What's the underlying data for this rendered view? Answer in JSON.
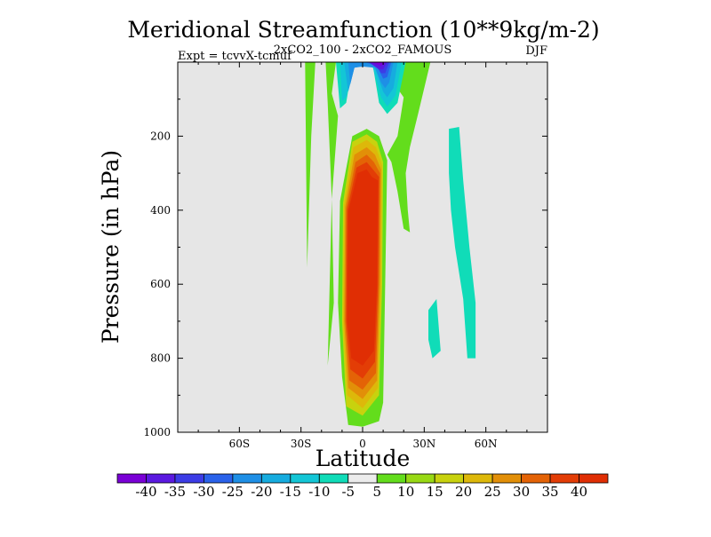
{
  "chart_data": {
    "type": "heatmap",
    "title": "Meridional Streamfunction (10**9kg/m-2)",
    "subtitle_center": "2xCO2_100 - 2xCO2_FAMOUS",
    "subtitle_left": "Expt = tcvvX-tcmuf",
    "subtitle_right": "DJF",
    "xlabel": "Latitude",
    "ylabel": "Pressure (in hPa)",
    "xlim": [
      -90,
      90
    ],
    "ylim": [
      1000,
      0
    ],
    "x_ticks": [
      {
        "value": -60,
        "label": "60S"
      },
      {
        "value": -30,
        "label": "30S"
      },
      {
        "value": 0,
        "label": "0"
      },
      {
        "value": 30,
        "label": "30N"
      },
      {
        "value": 60,
        "label": "60N"
      }
    ],
    "y_ticks": [
      {
        "value": 200,
        "label": "200"
      },
      {
        "value": 400,
        "label": "400"
      },
      {
        "value": 600,
        "label": "600"
      },
      {
        "value": 800,
        "label": "800"
      },
      {
        "value": 1000,
        "label": "1000"
      }
    ],
    "background_color": "#e6e6e6",
    "colorbar": {
      "labels": [
        "-40",
        "-35",
        "-30",
        "-25",
        "-20",
        "-15",
        "-10",
        "-5",
        "5",
        "10",
        "15",
        "20",
        "25",
        "30",
        "35",
        "40"
      ],
      "colors": [
        "#7a00d6",
        "#5b19e0",
        "#3c3ce6",
        "#2a62ea",
        "#1e8fe6",
        "#16acdf",
        "#13c6d6",
        "#10dcb8",
        "#ececec",
        "#63dd1c",
        "#98d914",
        "#c8d20e",
        "#ddb80a",
        "#e28f08",
        "#e46306",
        "#e33d06",
        "#e02e04"
      ]
    },
    "regions": [
      {
        "level": 5,
        "points": [
          [
            -18,
            0
          ],
          [
            -13,
            0
          ],
          [
            -15,
            85
          ],
          [
            -12,
            145
          ],
          [
            -15,
            370
          ],
          [
            -14,
            650
          ],
          [
            -17,
            820
          ],
          [
            -15,
            370
          ],
          [
            -17,
            110
          ]
        ]
      },
      {
        "level": 5,
        "points": [
          [
            -28,
            0
          ],
          [
            -23,
            0
          ],
          [
            -25,
            200
          ],
          [
            -27,
            555
          ]
        ]
      },
      {
        "level": 5,
        "points": [
          [
            8,
            0
          ],
          [
            33,
            0
          ],
          [
            27,
            140
          ],
          [
            23,
            230
          ],
          [
            21,
            300
          ],
          [
            22,
            400
          ],
          [
            23,
            460
          ],
          [
            20,
            450
          ],
          [
            17,
            350
          ],
          [
            14,
            270
          ],
          [
            12,
            250
          ],
          [
            17,
            200
          ],
          [
            20,
            95
          ]
        ]
      },
      {
        "level": 5,
        "points": [
          [
            -11,
            375
          ],
          [
            -5,
            200
          ],
          [
            2,
            180
          ],
          [
            8,
            200
          ],
          [
            12,
            265
          ],
          [
            11,
            600
          ],
          [
            10,
            920
          ],
          [
            8,
            970
          ],
          [
            0,
            985
          ],
          [
            -7,
            980
          ],
          [
            -10,
            850
          ],
          [
            -12,
            650
          ]
        ]
      },
      {
        "level": 15,
        "points": [
          [
            -9.5,
            380
          ],
          [
            -5,
            215
          ],
          [
            2,
            195
          ],
          [
            7,
            215
          ],
          [
            10,
            270
          ],
          [
            9.5,
            600
          ],
          [
            8,
            900
          ],
          [
            0,
            955
          ],
          [
            -8,
            930
          ],
          [
            -10,
            700
          ]
        ]
      },
      {
        "level": 20,
        "points": [
          [
            -9,
            385
          ],
          [
            -4.5,
            230
          ],
          [
            2,
            210
          ],
          [
            6.5,
            230
          ],
          [
            9.5,
            280
          ],
          [
            9,
            600
          ],
          [
            7.5,
            880
          ],
          [
            0,
            935
          ],
          [
            -7.5,
            900
          ],
          [
            -9.5,
            700
          ]
        ]
      },
      {
        "level": 25,
        "points": [
          [
            -8.5,
            390
          ],
          [
            -4,
            250
          ],
          [
            2,
            230
          ],
          [
            6,
            250
          ],
          [
            9,
            290
          ],
          [
            8.5,
            600
          ],
          [
            7,
            860
          ],
          [
            0,
            910
          ],
          [
            -7,
            880
          ],
          [
            -9,
            700
          ]
        ]
      },
      {
        "level": 30,
        "points": [
          [
            -8,
            395
          ],
          [
            -3.5,
            270
          ],
          [
            2,
            250
          ],
          [
            5.5,
            270
          ],
          [
            8.5,
            300
          ],
          [
            8,
            600
          ],
          [
            6.5,
            840
          ],
          [
            0,
            885
          ],
          [
            -6.5,
            860
          ],
          [
            -8.5,
            700
          ]
        ]
      },
      {
        "level": 35,
        "points": [
          [
            -7.5,
            400
          ],
          [
            -3,
            285
          ],
          [
            2,
            270
          ],
          [
            5,
            290
          ],
          [
            8,
            310
          ],
          [
            7.5,
            600
          ],
          [
            6,
            810
          ],
          [
            0,
            855
          ],
          [
            -6,
            830
          ],
          [
            -8,
            700
          ]
        ]
      },
      {
        "level": 40,
        "points": [
          [
            -7,
            405
          ],
          [
            -2.5,
            300
          ],
          [
            2,
            290
          ],
          [
            4.5,
            310
          ],
          [
            7.5,
            320
          ],
          [
            7,
            600
          ],
          [
            5.5,
            780
          ],
          [
            0,
            820
          ],
          [
            -5.5,
            800
          ],
          [
            -7.5,
            700
          ]
        ]
      },
      {
        "level": -5,
        "points": [
          [
            42,
            180
          ],
          [
            47,
            175
          ],
          [
            49,
            320
          ],
          [
            52,
            500
          ],
          [
            55,
            650
          ],
          [
            55,
            800
          ],
          [
            51,
            800
          ],
          [
            49,
            640
          ],
          [
            45,
            500
          ],
          [
            43,
            400
          ],
          [
            42,
            300
          ]
        ]
      },
      {
        "level": -5,
        "points": [
          [
            32,
            670
          ],
          [
            36,
            640
          ],
          [
            38,
            780
          ],
          [
            34,
            800
          ],
          [
            32,
            750
          ]
        ]
      },
      {
        "level": -5,
        "points": [
          [
            -13,
            0
          ],
          [
            21,
            0
          ],
          [
            17,
            110
          ],
          [
            12,
            140
          ],
          [
            8,
            110
          ],
          [
            5,
            10
          ],
          [
            0,
            0
          ],
          [
            -5,
            10
          ],
          [
            -8,
            110
          ],
          [
            -11,
            125
          ]
        ]
      },
      {
        "level": -10,
        "points": [
          [
            -11,
            0
          ],
          [
            19,
            0
          ],
          [
            16,
            90
          ],
          [
            12,
            120
          ],
          [
            9,
            95
          ],
          [
            5,
            15
          ],
          [
            0,
            5
          ],
          [
            -5,
            15
          ],
          [
            -8,
            95
          ],
          [
            -10,
            105
          ]
        ]
      },
      {
        "level": -15,
        "points": [
          [
            -9,
            0
          ],
          [
            17,
            0
          ],
          [
            15,
            70
          ],
          [
            12,
            95
          ],
          [
            10,
            80
          ],
          [
            6,
            15
          ],
          [
            0,
            10
          ],
          [
            -4,
            15
          ],
          [
            -7,
            80
          ]
        ]
      },
      {
        "level": -20,
        "points": [
          [
            -7,
            0
          ],
          [
            15,
            0
          ],
          [
            13,
            55
          ],
          [
            11,
            70
          ],
          [
            9,
            55
          ],
          [
            6,
            15
          ],
          [
            0,
            12
          ],
          [
            -4,
            15
          ],
          [
            -6,
            60
          ]
        ]
      },
      {
        "level": -25,
        "points": [
          [
            1,
            0
          ],
          [
            14,
            0
          ],
          [
            12,
            40
          ],
          [
            10,
            45
          ],
          [
            7,
            10
          ]
        ]
      },
      {
        "level": -30,
        "points": [
          [
            2,
            0
          ],
          [
            13,
            0
          ],
          [
            11,
            30
          ],
          [
            9,
            30
          ],
          [
            6,
            5
          ]
        ]
      },
      {
        "level": -35,
        "points": [
          [
            3,
            0
          ],
          [
            12,
            0
          ],
          [
            10,
            20
          ],
          [
            8,
            20
          ]
        ]
      },
      {
        "level": -40,
        "points": [
          [
            4,
            0
          ],
          [
            11,
            0
          ],
          [
            9,
            10
          ]
        ]
      }
    ]
  }
}
